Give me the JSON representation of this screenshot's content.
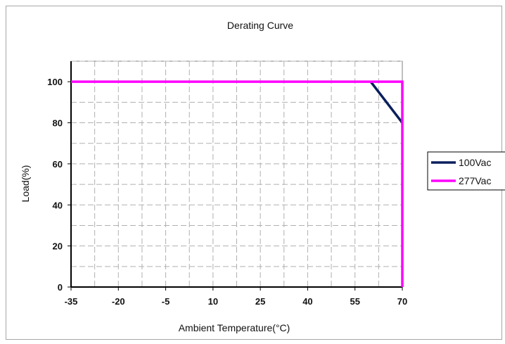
{
  "chart_data": {
    "type": "line",
    "title": "Derating Curve",
    "xlabel": "Ambient Temperature(°C)",
    "ylabel": "Load(%)",
    "xlim": [
      -35,
      70
    ],
    "ylim": [
      0,
      110
    ],
    "x_ticks": [
      -35,
      -20,
      -5,
      10,
      25,
      40,
      55,
      70
    ],
    "x_tick_labels": [
      "-35",
      "-20",
      "-5",
      "10",
      "25",
      "40",
      "55",
      "70"
    ],
    "y_ticks": [
      0,
      20,
      40,
      60,
      80,
      100
    ],
    "y_tick_labels": [
      "0",
      "20",
      "40",
      "60",
      "80",
      "100"
    ],
    "grid": true,
    "legend_position": "right",
    "series": [
      {
        "name": "100Vac",
        "color": "#0a1f5c",
        "x": [
          60,
          70
        ],
        "y": [
          100,
          80
        ]
      },
      {
        "name": "277Vac",
        "color": "#ff00ff",
        "x": [
          -35,
          70,
          70
        ],
        "y": [
          100,
          100,
          0
        ]
      }
    ]
  }
}
